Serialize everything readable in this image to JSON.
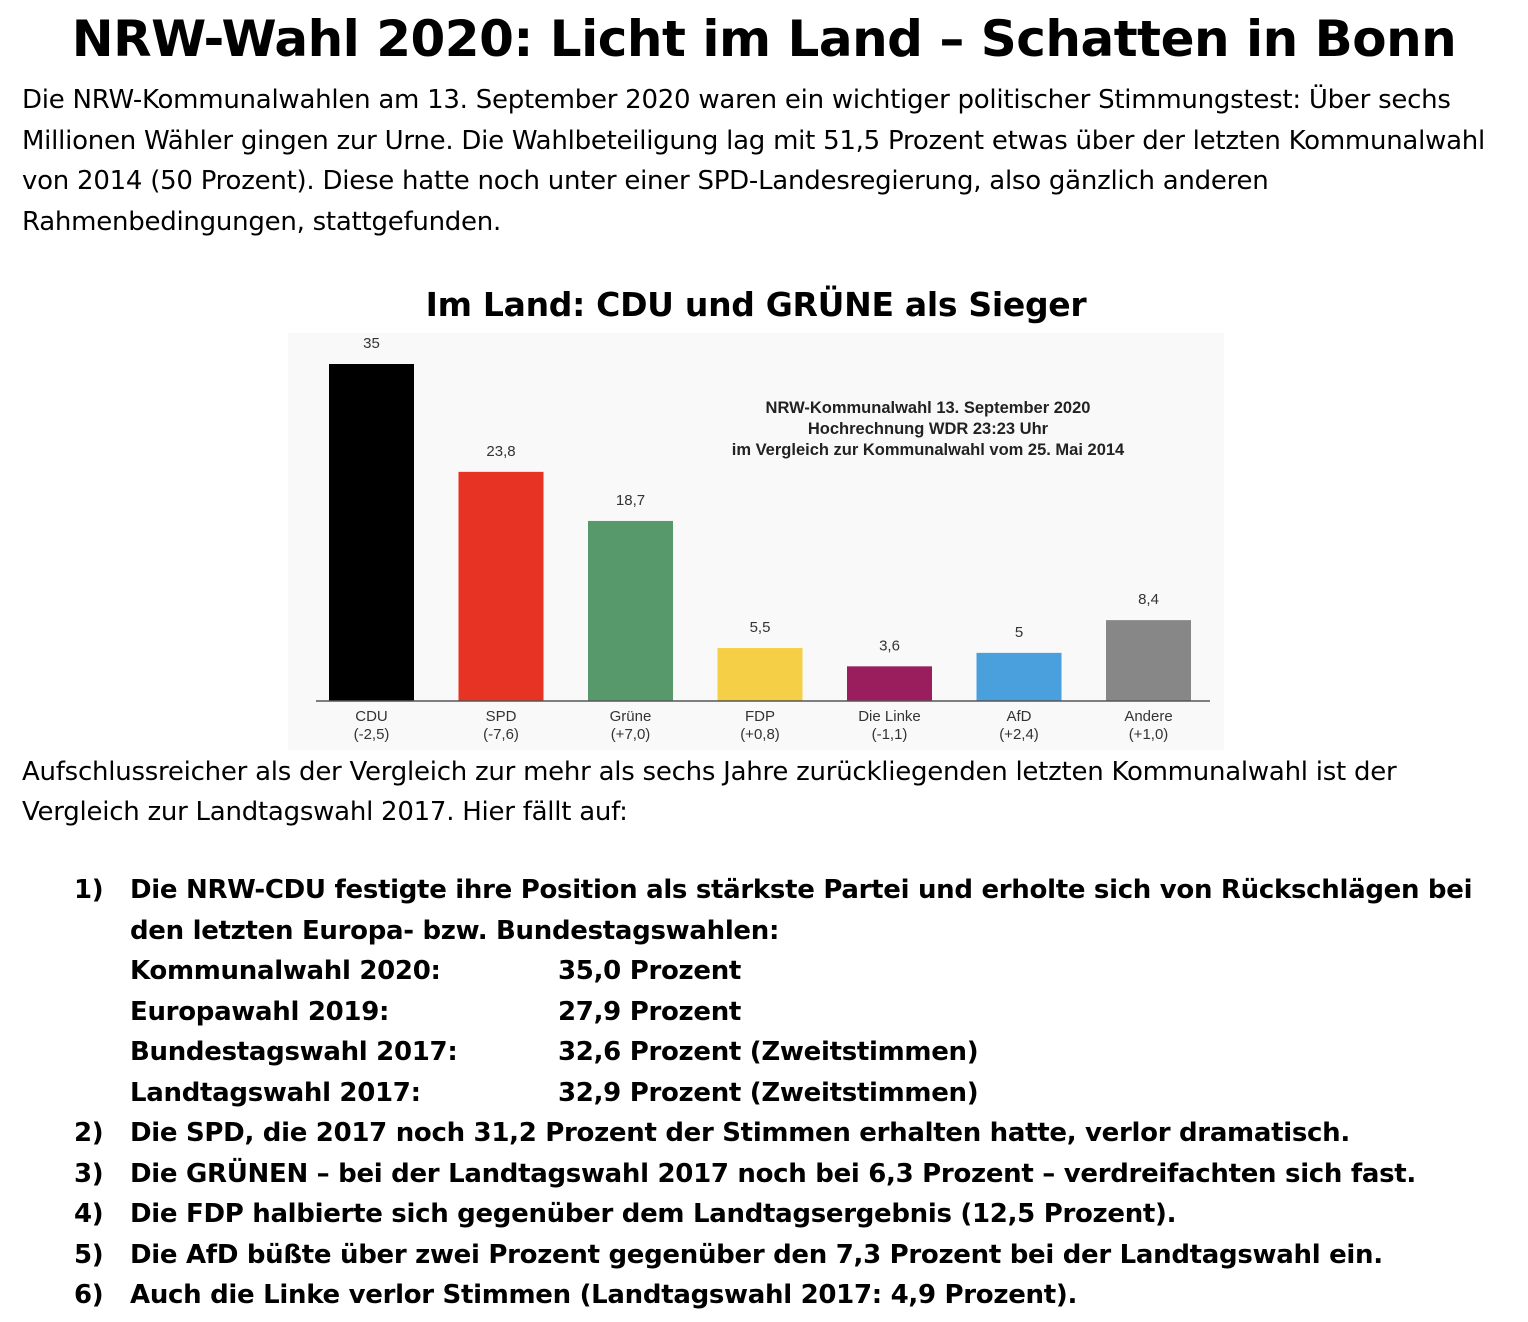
{
  "title": "NRW-Wahl 2020: Licht im Land – Schatten in Bonn",
  "intro": "Die NRW-Kommunalwahlen am 13. September 2020 waren ein wichtiger politischer Stimmungstest: Über sechs Millionen Wähler gingen zur Urne. Die Wahlbeteiligung lag mit 51,5 Prozent etwas über der letzten Kommunalwahl von 2014 (50 Prozent). Diese hatte noch unter einer SPD-Landesregierung, also gänzlich anderen Rahmenbedingungen, stattgefunden.",
  "chart_heading": "Im Land: CDU und GRÜNE als Sieger",
  "chart_data": {
    "type": "bar",
    "title": "NRW-Kommunalwahl 13. September 2020",
    "subtitle_lines": [
      "Hochrechnung WDR 23:23 Uhr",
      "im Vergleich zur Kommunalwahl vom 25. Mai 2014"
    ],
    "categories": [
      "CDU",
      "SPD",
      "Grüne",
      "FDP",
      "Die Linke",
      "AfD",
      "Andere"
    ],
    "values": [
      35,
      23.8,
      18.7,
      5.5,
      3.6,
      5,
      8.4
    ],
    "value_labels": [
      "35",
      "23,8",
      "18,7",
      "5,5",
      "3,6",
      "5",
      "8,4"
    ],
    "changes": [
      "(-2,5)",
      "(-7,6)",
      "(+7,0)",
      "(+0,8)",
      "(-1,1)",
      "(+2,4)",
      "(+1,0)"
    ],
    "colors": [
      "#000000",
      "#e63323",
      "#58996b",
      "#f5cf45",
      "#9a1d5d",
      "#4aa0dd",
      "#878787"
    ],
    "ylim": [
      0,
      35
    ],
    "grid": false,
    "xlabel": "",
    "ylabel": ""
  },
  "followup": "Aufschlussreicher als der Vergleich zur mehr als sechs Jahre zurückliegenden letzten Kommunalwahl ist der Vergleich zur Landtagswahl 2017. Hier fällt auf:",
  "findings": [
    {
      "num": "1)",
      "text": "Die NRW-CDU festigte ihre Position als stärkste Partei und erholte sich von Rückschlägen bei den letzten Europa- bzw. Bundestagswahlen:",
      "rows": [
        {
          "label": "Kommunalwahl 2020:",
          "value": "35,0 Prozent"
        },
        {
          "label": "Europawahl 2019:",
          "value": "27,9 Prozent"
        },
        {
          "label": "Bundestagswahl 2017:",
          "value": "32,6 Prozent (Zweitstimmen)"
        },
        {
          "label": "Landtagswahl 2017:",
          "value": "32,9 Prozent (Zweitstimmen)"
        }
      ]
    },
    {
      "num": "2)",
      "text": "Die SPD, die 2017 noch 31,2 Prozent der Stimmen erhalten hatte, verlor dramatisch."
    },
    {
      "num": "3)",
      "text": "Die GRÜNEN – bei der Landtagswahl 2017 noch bei 6,3 Prozent – verdreifachten sich fast."
    },
    {
      "num": "4)",
      "text": "Die FDP halbierte sich gegenüber dem Landtagsergebnis (12,5 Prozent)."
    },
    {
      "num": "5)",
      "text": "Die AfD büßte über zwei Prozent gegenüber den 7,3 Prozent bei der Landtagswahl ein."
    },
    {
      "num": "6)",
      "text": "Auch die Linke verlor Stimmen (Landtagswahl 2017: 4,9 Prozent)."
    }
  ]
}
